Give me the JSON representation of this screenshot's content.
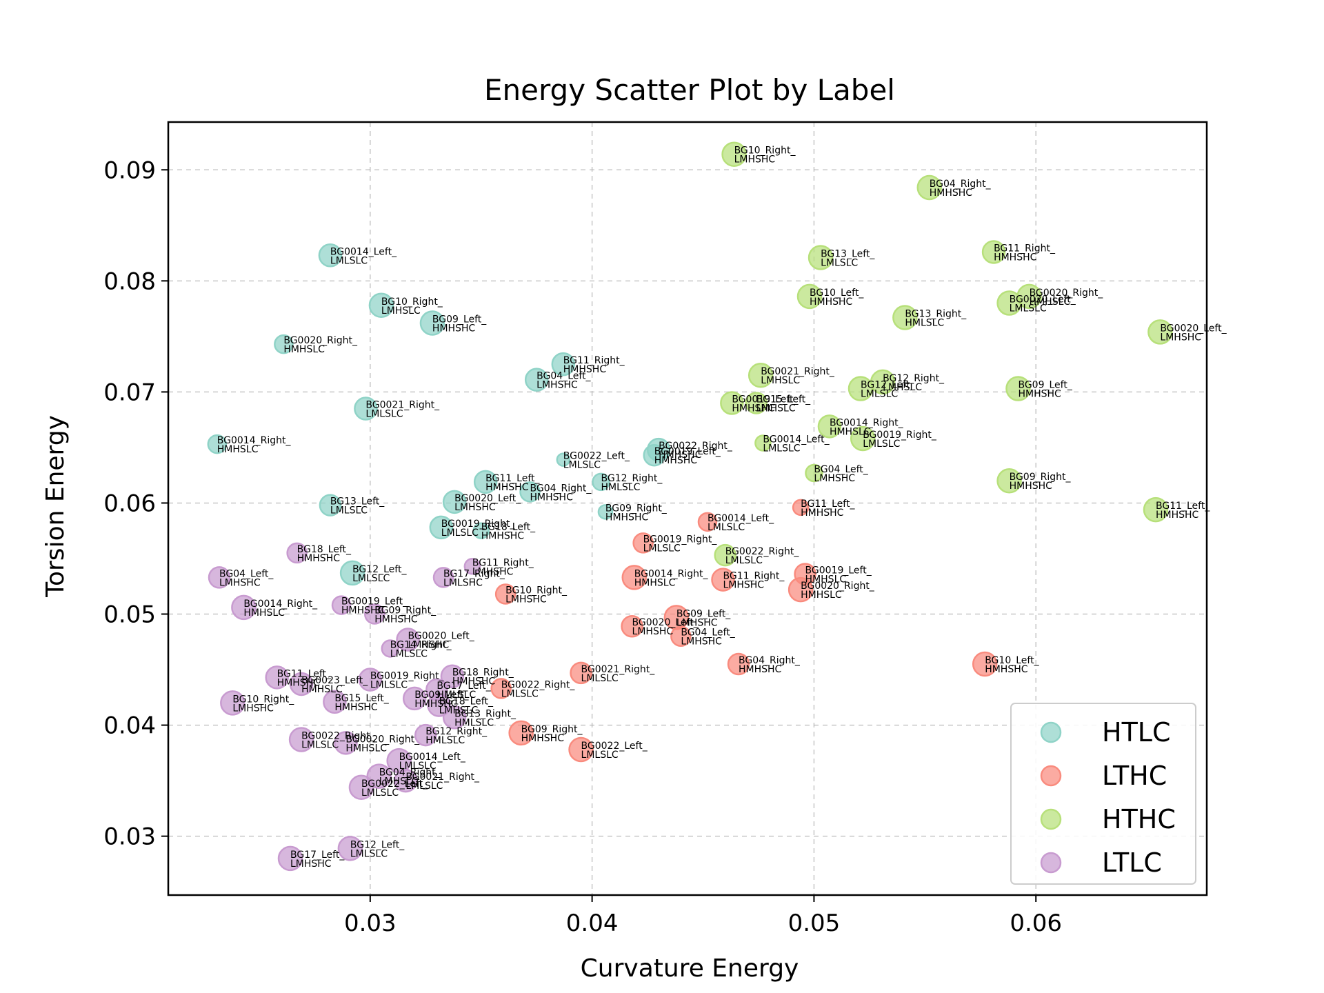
{
  "chart_data": {
    "type": "scatter",
    "title": "Energy Scatter Plot by Label",
    "xlabel": "Curvature Energy",
    "ylabel": "Torsion Energy",
    "xlim": [
      0.0209,
      0.0677
    ],
    "ylim": [
      0.0247,
      0.0943
    ],
    "xticks": [
      0.03,
      0.04,
      0.05,
      0.06
    ],
    "yticks": [
      0.03,
      0.04,
      0.05,
      0.06,
      0.07,
      0.08,
      0.09
    ],
    "xtick_labels": [
      "0.03",
      "0.04",
      "0.05",
      "0.06"
    ],
    "ytick_labels": [
      "0.03",
      "0.04",
      "0.05",
      "0.06",
      "0.07",
      "0.08",
      "0.09"
    ],
    "grid": true,
    "legend_position": "bottom-right",
    "series": [
      {
        "name": "HTLC",
        "color": "#8fd3c7",
        "points": [
          {
            "x": 0.0282,
            "y": 0.0823,
            "s": 1.3,
            "l1": "BG0014_Left_",
            "l2": "LMLSLC"
          },
          {
            "x": 0.0305,
            "y": 0.0778,
            "s": 1.4,
            "l1": "BG10_Right_",
            "l2": "LMHSLC"
          },
          {
            "x": 0.0328,
            "y": 0.0762,
            "s": 1.4,
            "l1": "BG09_Left_",
            "l2": "HMHSHC"
          },
          {
            "x": 0.0261,
            "y": 0.0743,
            "s": 1.0,
            "l1": "BG0020_Right_",
            "l2": "HMHSLC"
          },
          {
            "x": 0.0387,
            "y": 0.0725,
            "s": 1.3,
            "l1": "BG11_Right_",
            "l2": "HMHSHC"
          },
          {
            "x": 0.0375,
            "y": 0.0711,
            "s": 1.3,
            "l1": "BG04_Left_",
            "l2": "LMHSHC"
          },
          {
            "x": 0.0298,
            "y": 0.0685,
            "s": 1.3,
            "l1": "BG0021_Right_",
            "l2": "LMLSLC"
          },
          {
            "x": 0.0231,
            "y": 0.0653,
            "s": 1.0,
            "l1": "BG0014_Right_",
            "l2": "HMHSLC"
          },
          {
            "x": 0.0387,
            "y": 0.0639,
            "s": 0.6,
            "l1": "BG0022_Left_",
            "l2": "LMLSLC"
          },
          {
            "x": 0.043,
            "y": 0.0648,
            "s": 1.3,
            "l1": "BG0022_Right_",
            "l2": "HMHSHC"
          },
          {
            "x": 0.0428,
            "y": 0.0643,
            "s": 1.2,
            "l1": "BG0019_Left_",
            "l2": "HMHSHC"
          },
          {
            "x": 0.0352,
            "y": 0.0619,
            "s": 1.3,
            "l1": "BG11_Left_",
            "l2": "HMHSHC"
          },
          {
            "x": 0.0404,
            "y": 0.0619,
            "s": 0.9,
            "l1": "BG12_Right_",
            "l2": "HMLSLC"
          },
          {
            "x": 0.0338,
            "y": 0.0601,
            "s": 1.3,
            "l1": "BG0020_Left_",
            "l2": "LMHSHC"
          },
          {
            "x": 0.0372,
            "y": 0.061,
            "s": 1.1,
            "l1": "BG04_Right_",
            "l2": "HMHSHC"
          },
          {
            "x": 0.0282,
            "y": 0.0598,
            "s": 1.2,
            "l1": "BG13_Left_",
            "l2": "LMLSLC"
          },
          {
            "x": 0.0406,
            "y": 0.0592,
            "s": 0.7,
            "l1": "BG09_Right_",
            "l2": "HMHSHC"
          },
          {
            "x": 0.0332,
            "y": 0.0578,
            "s": 1.3,
            "l1": "BG0019_Right_",
            "l2": "LMLSLC"
          },
          {
            "x": 0.035,
            "y": 0.0575,
            "s": 0.8,
            "l1": "BG18_Left_",
            "l2": "HMHSHC"
          },
          {
            "x": 0.0292,
            "y": 0.0537,
            "s": 1.4,
            "l1": "BG12_Left_",
            "l2": "LMLSLC"
          }
        ]
      },
      {
        "name": "LTHC",
        "color": "#f98b7e",
        "points": [
          {
            "x": 0.0494,
            "y": 0.0596,
            "s": 0.8,
            "l1": "BG11_Left_",
            "l2": "HMHSHC"
          },
          {
            "x": 0.0452,
            "y": 0.0583,
            "s": 1.0,
            "l1": "BG0014_Left_",
            "l2": "LMLSLC"
          },
          {
            "x": 0.0423,
            "y": 0.0564,
            "s": 1.1,
            "l1": "BG0019_Right_",
            "l2": "LMLSLC"
          },
          {
            "x": 0.0419,
            "y": 0.0533,
            "s": 1.4,
            "l1": "BG0014_Right_",
            "l2": "HMHSLC"
          },
          {
            "x": 0.0459,
            "y": 0.0531,
            "s": 1.3,
            "l1": "BG11_Right_",
            "l2": "LMHSHC"
          },
          {
            "x": 0.0496,
            "y": 0.0536,
            "s": 1.2,
            "l1": "BG0019_Left_",
            "l2": "HMHSLC"
          },
          {
            "x": 0.0494,
            "y": 0.0522,
            "s": 1.4,
            "l1": "BG0020_Right_",
            "l2": "HMHSLC"
          },
          {
            "x": 0.0361,
            "y": 0.0518,
            "s": 1.1,
            "l1": "BG10_Right_",
            "l2": "LMHSHC"
          },
          {
            "x": 0.0438,
            "y": 0.0497,
            "s": 1.4,
            "l1": "BG09_Left_",
            "l2": "LMHSHC"
          },
          {
            "x": 0.0418,
            "y": 0.0489,
            "s": 1.2,
            "l1": "BG0020_Left_",
            "l2": "LMHSHC"
          },
          {
            "x": 0.044,
            "y": 0.048,
            "s": 1.1,
            "l1": "BG04_Left_",
            "l2": "LMHSHC"
          },
          {
            "x": 0.0466,
            "y": 0.0455,
            "s": 1.2,
            "l1": "BG04_Right_",
            "l2": "HMHSHC"
          },
          {
            "x": 0.0577,
            "y": 0.0455,
            "s": 1.4,
            "l1": "BG10_Left_",
            "l2": "HMHSHC"
          },
          {
            "x": 0.0395,
            "y": 0.0447,
            "s": 1.2,
            "l1": "BG0021_Right_",
            "l2": "LMLSLC"
          },
          {
            "x": 0.0359,
            "y": 0.0433,
            "s": 1.1,
            "l1": "BG0022_Right_",
            "l2": "LMLSLC"
          },
          {
            "x": 0.0368,
            "y": 0.0393,
            "s": 1.4,
            "l1": "BG09_Right_",
            "l2": "HMHSHC"
          },
          {
            "x": 0.0395,
            "y": 0.0378,
            "s": 1.4,
            "l1": "BG0022_Left_",
            "l2": "LMLSLC"
          }
        ]
      },
      {
        "name": "HTHC",
        "color": "#b7e07a",
        "points": [
          {
            "x": 0.0464,
            "y": 0.0914,
            "s": 1.4,
            "l1": "BG10_Right_",
            "l2": "LMHSHC"
          },
          {
            "x": 0.0552,
            "y": 0.0884,
            "s": 1.4,
            "l1": "BG04_Right_",
            "l2": "HMHSHC"
          },
          {
            "x": 0.0503,
            "y": 0.0821,
            "s": 1.4,
            "l1": "BG13_Left_",
            "l2": "LMLSLC"
          },
          {
            "x": 0.0581,
            "y": 0.0826,
            "s": 1.3,
            "l1": "BG11_Right_",
            "l2": "HMHSHC"
          },
          {
            "x": 0.0498,
            "y": 0.0786,
            "s": 1.4,
            "l1": "BG10_Left_",
            "l2": "HMHSHC"
          },
          {
            "x": 0.0597,
            "y": 0.0786,
            "s": 1.4,
            "l1": "BG0020_Right_",
            "l2": "HMHSLC"
          },
          {
            "x": 0.0588,
            "y": 0.078,
            "s": 1.4,
            "l1": "BG0020_Left_",
            "l2": "LMLSLC"
          },
          {
            "x": 0.0541,
            "y": 0.0767,
            "s": 1.4,
            "l1": "BG13_Right_",
            "l2": "HMLSLC"
          },
          {
            "x": 0.0656,
            "y": 0.0754,
            "s": 1.4,
            "l1": "BG0020_Left_",
            "l2": "LMHSHC"
          },
          {
            "x": 0.0476,
            "y": 0.0715,
            "s": 1.4,
            "l1": "BG0021_Right_",
            "l2": "LMHSLC"
          },
          {
            "x": 0.0531,
            "y": 0.0709,
            "s": 1.4,
            "l1": "BG12_Right_",
            "l2": "LMHSLC"
          },
          {
            "x": 0.0521,
            "y": 0.0703,
            "s": 1.4,
            "l1": "BG12_Left_",
            "l2": "LMLSLC"
          },
          {
            "x": 0.0592,
            "y": 0.0703,
            "s": 1.4,
            "l1": "BG09_Left_",
            "l2": "HMHSHC"
          },
          {
            "x": 0.0463,
            "y": 0.069,
            "s": 1.3,
            "l1": "BG0019_Left_",
            "l2": "HMHSHC"
          },
          {
            "x": 0.0474,
            "y": 0.069,
            "s": 1.2,
            "l1": "BG15_Left_",
            "l2": "LMHSLC"
          },
          {
            "x": 0.0507,
            "y": 0.0669,
            "s": 1.3,
            "l1": "BG0014_Right_",
            "l2": "HMHSLC"
          },
          {
            "x": 0.0477,
            "y": 0.0654,
            "s": 0.8,
            "l1": "BG0014_Left_",
            "l2": "LMLSLC"
          },
          {
            "x": 0.0522,
            "y": 0.0658,
            "s": 1.4,
            "l1": "BG0019_Right_",
            "l2": "LMLSLC"
          },
          {
            "x": 0.05,
            "y": 0.0627,
            "s": 0.9,
            "l1": "BG04_Left_",
            "l2": "LMHSHC"
          },
          {
            "x": 0.0588,
            "y": 0.062,
            "s": 1.4,
            "l1": "BG09_Right_",
            "l2": "HMHSHC"
          },
          {
            "x": 0.0654,
            "y": 0.0594,
            "s": 1.4,
            "l1": "BG11_Left_",
            "l2": "HMHSHC"
          },
          {
            "x": 0.046,
            "y": 0.0553,
            "s": 1.2,
            "l1": "BG0022_Right_",
            "l2": "LMLSLC"
          }
        ]
      },
      {
        "name": "LTLC",
        "color": "#c89bd0",
        "points": [
          {
            "x": 0.0267,
            "y": 0.0555,
            "s": 1.1,
            "l1": "BG18_Left_",
            "l2": "HMHSHC"
          },
          {
            "x": 0.0346,
            "y": 0.0543,
            "s": 0.8,
            "l1": "BG11_Right_",
            "l2": "LMHSHC"
          },
          {
            "x": 0.0232,
            "y": 0.0533,
            "s": 1.2,
            "l1": "BG04_Left_",
            "l2": "LMHSHC"
          },
          {
            "x": 0.0333,
            "y": 0.0533,
            "s": 1.1,
            "l1": "BG17_Right_",
            "l2": "LMLSHC"
          },
          {
            "x": 0.0243,
            "y": 0.0506,
            "s": 1.4,
            "l1": "BG0014_Right_",
            "l2": "HMHSLC"
          },
          {
            "x": 0.0287,
            "y": 0.0508,
            "s": 1.0,
            "l1": "BG0019_Left_",
            "l2": "HMHSHC"
          },
          {
            "x": 0.0302,
            "y": 0.05,
            "s": 1.1,
            "l1": "BG09_Right_",
            "l2": "HMHSHC"
          },
          {
            "x": 0.0317,
            "y": 0.0477,
            "s": 1.3,
            "l1": "BG0020_Left_",
            "l2": "LMHSHC"
          },
          {
            "x": 0.0309,
            "y": 0.0469,
            "s": 0.9,
            "l1": "BG14_Right_",
            "l2": "LMLSLC"
          },
          {
            "x": 0.0258,
            "y": 0.0443,
            "s": 1.3,
            "l1": "BG11_Left_",
            "l2": "HMHSHC"
          },
          {
            "x": 0.0269,
            "y": 0.0437,
            "s": 1.3,
            "l1": "BG0023_Left_",
            "l2": "HMHSLC"
          },
          {
            "x": 0.03,
            "y": 0.0441,
            "s": 1.3,
            "l1": "BG0019_Right_",
            "l2": "LMLSLC"
          },
          {
            "x": 0.0337,
            "y": 0.0444,
            "s": 1.3,
            "l1": "BG18_Right_",
            "l2": "HMHSHC"
          },
          {
            "x": 0.033,
            "y": 0.0432,
            "s": 1.2,
            "l1": "BG17_Left_",
            "l2": "HMLSLC"
          },
          {
            "x": 0.0238,
            "y": 0.042,
            "s": 1.4,
            "l1": "BG10_Right_",
            "l2": "LMHSHC"
          },
          {
            "x": 0.0284,
            "y": 0.0421,
            "s": 1.3,
            "l1": "BG15_Left_",
            "l2": "HMHSHC"
          },
          {
            "x": 0.032,
            "y": 0.0424,
            "s": 1.3,
            "l1": "BG09_Left_",
            "l2": "HMHSHC"
          },
          {
            "x": 0.0331,
            "y": 0.0418,
            "s": 1.3,
            "l1": "BG18_Left_",
            "l2": "LMHSLC"
          },
          {
            "x": 0.0338,
            "y": 0.0407,
            "s": 1.3,
            "l1": "BG13_Right_",
            "l2": "HMLSLC"
          },
          {
            "x": 0.0325,
            "y": 0.0391,
            "s": 1.2,
            "l1": "BG12_Right_",
            "l2": "HMLSLC"
          },
          {
            "x": 0.0269,
            "y": 0.0387,
            "s": 1.4,
            "l1": "BG0022_Right_",
            "l2": "LMLSLC"
          },
          {
            "x": 0.0289,
            "y": 0.0384,
            "s": 1.3,
            "l1": "BG0020_Right_",
            "l2": "HMHSLC"
          },
          {
            "x": 0.0313,
            "y": 0.0368,
            "s": 1.4,
            "l1": "BG0014_Left_",
            "l2": "LMLSLC"
          },
          {
            "x": 0.0304,
            "y": 0.0354,
            "s": 1.4,
            "l1": "BG04_Right_",
            "l2": "LMHSLC"
          },
          {
            "x": 0.0316,
            "y": 0.035,
            "s": 1.3,
            "l1": "BG0021_Right_",
            "l2": "LMLSLC"
          },
          {
            "x": 0.0296,
            "y": 0.0344,
            "s": 1.4,
            "l1": "BG0022_Left_",
            "l2": "LMLSLC"
          },
          {
            "x": 0.0291,
            "y": 0.0289,
            "s": 1.4,
            "l1": "BG12_Left_",
            "l2": "LMLSLC"
          },
          {
            "x": 0.0264,
            "y": 0.028,
            "s": 1.4,
            "l1": "BG17_Left_",
            "l2": "LMHSHC"
          }
        ]
      }
    ]
  }
}
